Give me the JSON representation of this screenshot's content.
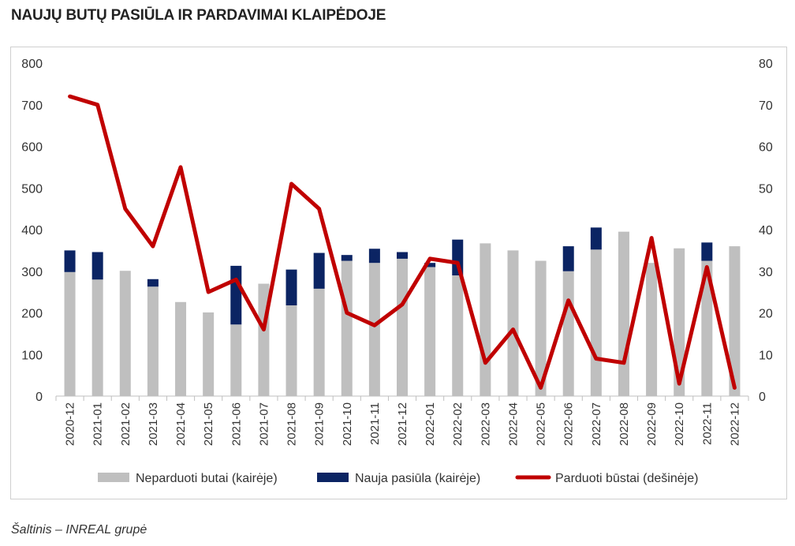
{
  "title": "NAUJŲ BUTŲ PASIŪLA IR PARDAVIMAI KLAIPĖDOJE",
  "source": "Šaltinis – INREAL grupė",
  "chart_data": {
    "type": "bar",
    "stacked": true,
    "categories": [
      "2020-12",
      "2021-01",
      "2021-02",
      "2021-03",
      "2021-04",
      "2021-05",
      "2021-06",
      "2021-07",
      "2021-08",
      "2021-09",
      "2021-10",
      "2021-11",
      "2021-12",
      "2022-01",
      "2022-02",
      "2022-03",
      "2022-04",
      "2022-05",
      "2022-06",
      "2022-07",
      "2022-08",
      "2022-09",
      "2022-10",
      "2022-11",
      "2022-12"
    ],
    "series": [
      {
        "name": "Neparduoti butai (kairėje)",
        "type": "bar",
        "axis": "left",
        "color": "#bfbfbf",
        "values": [
          298,
          280,
          301,
          263,
          226,
          201,
          172,
          270,
          218,
          258,
          325,
          320,
          330,
          310,
          290,
          367,
          350,
          325,
          300,
          352,
          395,
          320,
          355,
          325,
          360
        ]
      },
      {
        "name": "Nauja pasiūla (kairėje)",
        "type": "bar",
        "axis": "left",
        "color": "#0b2463",
        "values": [
          52,
          66,
          0,
          18,
          0,
          0,
          141,
          0,
          86,
          86,
          14,
          34,
          16,
          10,
          86,
          0,
          0,
          0,
          60,
          53,
          0,
          0,
          0,
          44,
          0
        ]
      },
      {
        "name": "Parduoti būstai (dešinėje)",
        "type": "line",
        "axis": "right",
        "color": "#c00000",
        "values": [
          72,
          70,
          45,
          36,
          55,
          25,
          28,
          16,
          51,
          45,
          20,
          17,
          22,
          33,
          32,
          8,
          16,
          2,
          23,
          9,
          8,
          38,
          3,
          31,
          2
        ]
      }
    ],
    "left_axis": {
      "min": 0,
      "max": 800,
      "ticks": [
        0,
        100,
        200,
        300,
        400,
        500,
        600,
        700,
        800
      ]
    },
    "right_axis": {
      "min": 0,
      "max": 80,
      "ticks": [
        0,
        10,
        20,
        30,
        40,
        50,
        60,
        70,
        80
      ]
    },
    "grid": false,
    "legend": "bottom"
  }
}
